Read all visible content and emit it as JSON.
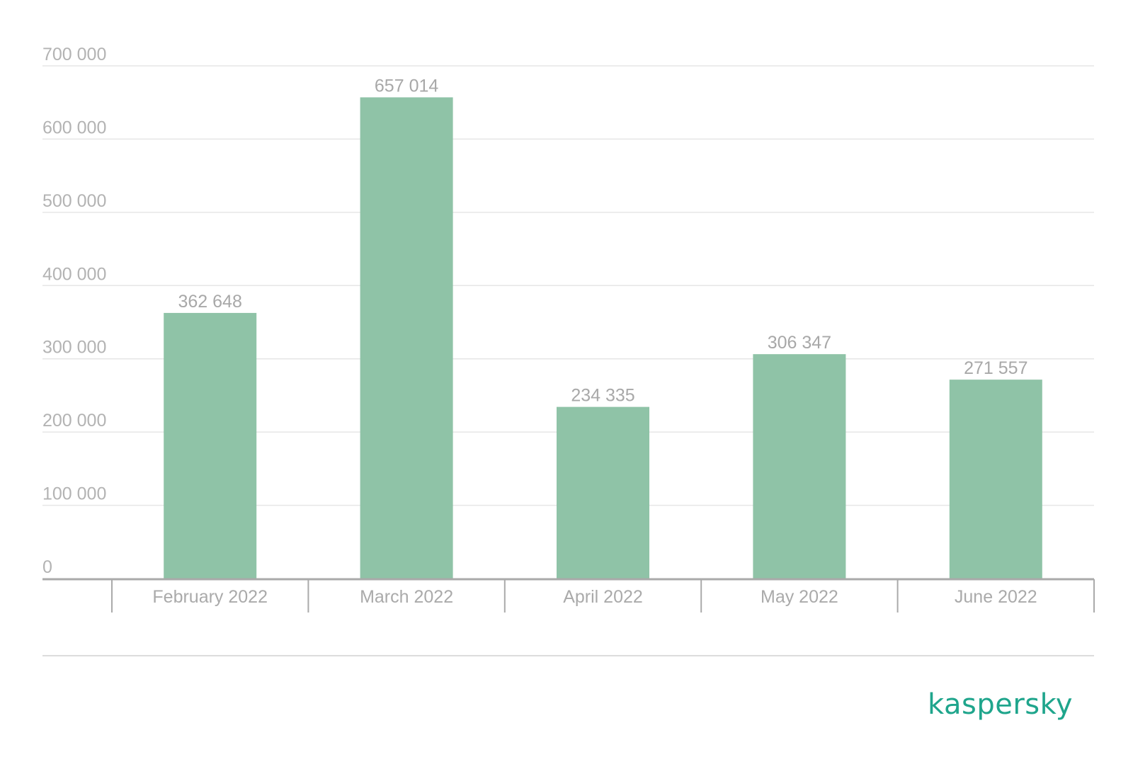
{
  "chart_data": {
    "type": "bar",
    "categories": [
      "February 2022",
      "March 2022",
      "April 2022",
      "May 2022",
      "June 2022"
    ],
    "values": [
      362648,
      657014,
      234335,
      306347,
      271557
    ],
    "value_labels": [
      "362 648",
      "657 014",
      "234 335",
      "306 347",
      "271 557"
    ],
    "ylim": [
      0,
      700000
    ],
    "yticks": [
      0,
      100000,
      200000,
      300000,
      400000,
      500000,
      600000,
      700000
    ],
    "ytick_labels": [
      "0",
      "100 000",
      "200 000",
      "300 000",
      "400 000",
      "500 000",
      "600 000",
      "700 000"
    ],
    "grid": true,
    "colors": {
      "bar": "#8fc3a7",
      "grid": "#e6e6e6",
      "axis": "#aaaaaa",
      "brand": "#1fa58c"
    }
  },
  "brand": {
    "logo_text": "kaspersky"
  }
}
